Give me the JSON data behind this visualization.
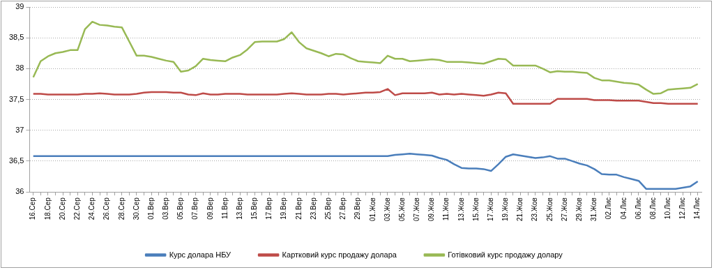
{
  "chart_data": {
    "type": "line",
    "categories": [
      "16.Сер",
      null,
      "18.Сер",
      null,
      "20.Сер",
      null,
      "22.Сер",
      null,
      "24.Сер",
      null,
      "26.Сер",
      null,
      "28.Сер",
      null,
      "30.Сер",
      null,
      "01.Вер",
      null,
      "03.Вер",
      null,
      "05.Вер",
      null,
      "07.Вер",
      null,
      "09.Вер",
      null,
      "11.Вер",
      null,
      "13.Вер",
      null,
      "15.Вер",
      null,
      "17.Вер",
      null,
      "19.Вер",
      null,
      "21.Вер",
      null,
      "23.Вер",
      null,
      "25.Вер",
      null,
      "27.Вер",
      null,
      "29.Вер",
      null,
      "01.Жов",
      null,
      "03.Жов",
      null,
      "05.Жов",
      null,
      "07.Жов",
      null,
      "09.Жов",
      null,
      "11.Жов",
      null,
      "13.Жов",
      null,
      "15.Жов",
      null,
      "17.Жов",
      null,
      "19.Жов",
      null,
      "21.Жов",
      null,
      "23.Жов",
      null,
      "25.Жов",
      null,
      "27.Жов",
      null,
      "29.Жов",
      null,
      "31.Жов",
      null,
      "02.Лис",
      null,
      "04.Лис",
      null,
      "06.Лис",
      null,
      "08.Лис",
      null,
      "10.Лис",
      null,
      "12.Лис",
      null,
      "14.Лис"
    ],
    "series": [
      {
        "name": "Курс долара НБУ",
        "color": "#4a7ebb",
        "values": [
          36.58,
          36.58,
          36.58,
          36.58,
          36.58,
          36.58,
          36.58,
          36.58,
          36.58,
          36.58,
          36.58,
          36.58,
          36.58,
          36.58,
          36.58,
          36.58,
          36.58,
          36.58,
          36.58,
          36.58,
          36.58,
          36.58,
          36.58,
          36.58,
          36.58,
          36.58,
          36.58,
          36.58,
          36.58,
          36.58,
          36.58,
          36.58,
          36.58,
          36.58,
          36.58,
          36.58,
          36.58,
          36.58,
          36.58,
          36.58,
          36.58,
          36.58,
          36.58,
          36.58,
          36.58,
          36.58,
          36.58,
          36.58,
          36.58,
          36.6,
          36.61,
          36.62,
          36.61,
          36.6,
          36.59,
          36.55,
          36.52,
          36.45,
          36.39,
          36.38,
          36.38,
          36.37,
          36.34,
          36.45,
          36.57,
          36.61,
          36.59,
          36.57,
          36.55,
          36.56,
          36.58,
          36.54,
          36.54,
          36.5,
          36.46,
          36.43,
          36.37,
          36.29,
          36.28,
          36.28,
          36.24,
          36.21,
          36.18,
          36.05,
          36.05,
          36.05,
          36.05,
          36.05,
          36.07,
          36.09,
          36.17
        ]
      },
      {
        "name": "Картковий курс продажу долара",
        "color": "#be4b48",
        "values": [
          37.59,
          37.59,
          37.58,
          37.58,
          37.58,
          37.58,
          37.58,
          37.59,
          37.59,
          37.6,
          37.59,
          37.58,
          37.58,
          37.58,
          37.59,
          37.61,
          37.62,
          37.62,
          37.62,
          37.61,
          37.61,
          37.58,
          37.57,
          37.6,
          37.58,
          37.58,
          37.59,
          37.59,
          37.59,
          37.58,
          37.58,
          37.58,
          37.58,
          37.58,
          37.59,
          37.6,
          37.59,
          37.58,
          37.58,
          37.58,
          37.59,
          37.59,
          37.58,
          37.59,
          37.6,
          37.61,
          37.61,
          37.62,
          37.67,
          37.57,
          37.6,
          37.6,
          37.6,
          37.6,
          37.61,
          37.58,
          37.59,
          37.58,
          37.59,
          37.58,
          37.57,
          37.56,
          37.58,
          37.61,
          37.6,
          37.43,
          37.43,
          37.43,
          37.43,
          37.43,
          37.43,
          37.51,
          37.51,
          37.51,
          37.51,
          37.51,
          37.49,
          37.49,
          37.49,
          37.48,
          37.48,
          37.48,
          37.48,
          37.46,
          37.44,
          37.44,
          37.43,
          37.43,
          37.43,
          37.43,
          37.43
        ]
      },
      {
        "name": "Готівковий курс продажу долару",
        "color": "#98b954",
        "values": [
          37.86,
          38.12,
          38.2,
          38.25,
          38.27,
          38.3,
          38.3,
          38.64,
          38.76,
          38.71,
          38.7,
          38.68,
          38.67,
          38.44,
          38.21,
          38.21,
          38.19,
          38.16,
          38.13,
          38.11,
          37.95,
          37.97,
          38.04,
          38.16,
          38.14,
          38.13,
          38.12,
          38.18,
          38.22,
          38.31,
          38.43,
          38.44,
          38.44,
          38.44,
          38.48,
          38.59,
          38.43,
          38.33,
          38.29,
          38.25,
          38.2,
          38.24,
          38.23,
          38.17,
          38.12,
          38.11,
          38.1,
          38.09,
          38.21,
          38.16,
          38.16,
          38.12,
          38.13,
          38.14,
          38.15,
          38.14,
          38.11,
          38.11,
          38.11,
          38.1,
          38.09,
          38.08,
          38.12,
          38.16,
          38.15,
          38.05,
          38.05,
          38.05,
          38.05,
          38,
          37.94,
          37.96,
          37.95,
          37.95,
          37.94,
          37.93,
          37.85,
          37.81,
          37.81,
          37.79,
          37.77,
          37.76,
          37.74,
          37.66,
          37.59,
          37.6,
          37.66,
          37.67,
          37.68,
          37.69,
          37.75
        ]
      }
    ],
    "ylim": [
      36,
      39
    ],
    "yticks": [
      {
        "value": 36,
        "label": "36"
      },
      {
        "value": 36.5,
        "label": "36,5"
      },
      {
        "value": 37,
        "label": "37"
      },
      {
        "value": 37.5,
        "label": "37,5"
      },
      {
        "value": 38,
        "label": "38"
      },
      {
        "value": 38.5,
        "label": "38,5"
      },
      {
        "value": 39,
        "label": "39"
      }
    ],
    "grid": "y",
    "legend": "bottom",
    "marker": "none",
    "line_style": "solid"
  }
}
